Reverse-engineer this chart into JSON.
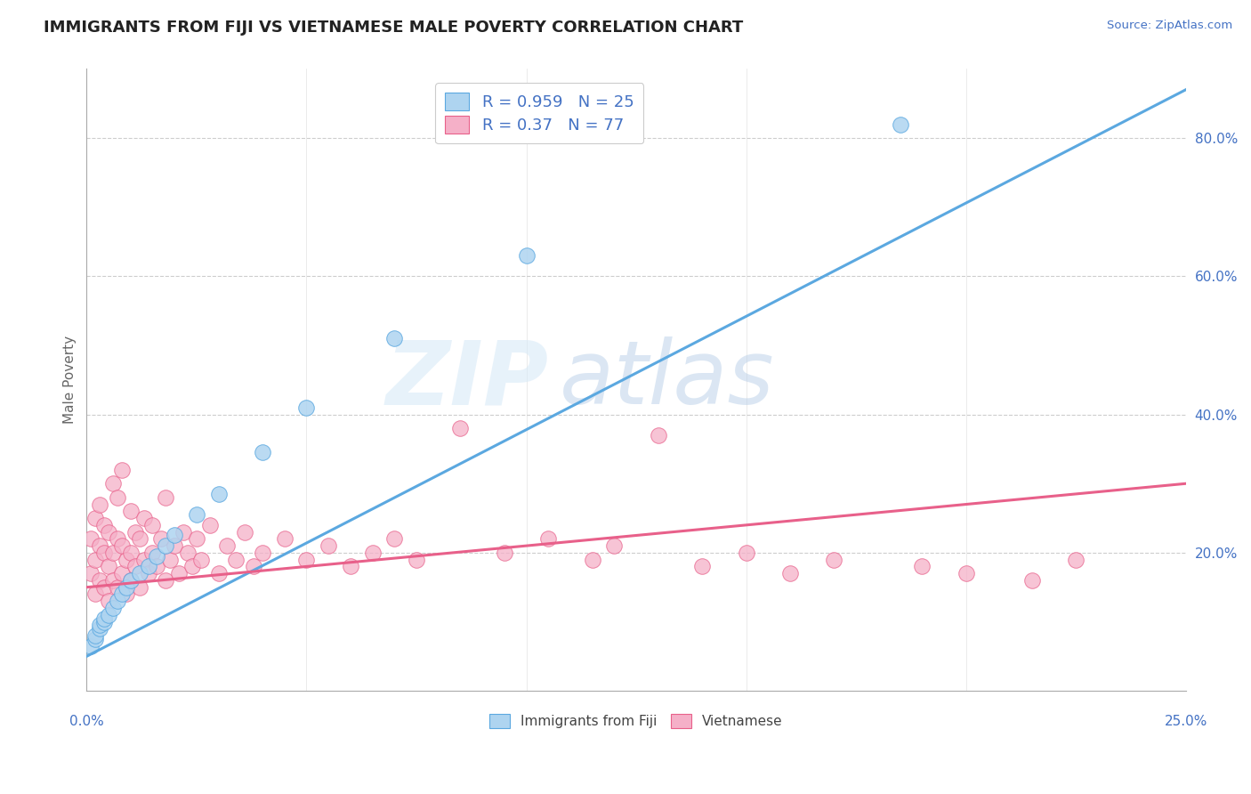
{
  "title": "IMMIGRANTS FROM FIJI VS VIETNAMESE MALE POVERTY CORRELATION CHART",
  "source_text": "Source: ZipAtlas.com",
  "ylabel": "Male Poverty",
  "right_yticks": [
    0.2,
    0.4,
    0.6,
    0.8
  ],
  "right_yticklabels": [
    "20.0%",
    "40.0%",
    "60.0%",
    "80.0%"
  ],
  "xlim": [
    0.0,
    0.25
  ],
  "ylim": [
    0.0,
    0.9
  ],
  "fiji_R": 0.959,
  "fiji_N": 25,
  "viet_R": 0.37,
  "viet_N": 77,
  "fiji_color": "#aed4f0",
  "fiji_line_color": "#5ba8e0",
  "viet_color": "#f5b0c8",
  "viet_line_color": "#e8608a",
  "legend_text_color": "#4472c4",
  "fiji_line_x0": 0.0,
  "fiji_line_y0": 0.05,
  "fiji_line_x1": 0.25,
  "fiji_line_y1": 0.87,
  "viet_line_x0": 0.0,
  "viet_line_y0": 0.15,
  "viet_line_x1": 0.25,
  "viet_line_y1": 0.3,
  "fiji_scatter_x": [
    0.001,
    0.002,
    0.002,
    0.003,
    0.003,
    0.004,
    0.004,
    0.005,
    0.006,
    0.007,
    0.008,
    0.009,
    0.01,
    0.012,
    0.014,
    0.016,
    0.018,
    0.02,
    0.025,
    0.03,
    0.04,
    0.05,
    0.07,
    0.1,
    0.185
  ],
  "fiji_scatter_y": [
    0.065,
    0.075,
    0.08,
    0.09,
    0.095,
    0.1,
    0.105,
    0.11,
    0.12,
    0.13,
    0.14,
    0.15,
    0.16,
    0.17,
    0.18,
    0.195,
    0.21,
    0.225,
    0.255,
    0.285,
    0.345,
    0.41,
    0.51,
    0.63,
    0.82
  ],
  "viet_scatter_x": [
    0.001,
    0.001,
    0.002,
    0.002,
    0.002,
    0.003,
    0.003,
    0.003,
    0.004,
    0.004,
    0.004,
    0.005,
    0.005,
    0.005,
    0.006,
    0.006,
    0.006,
    0.007,
    0.007,
    0.007,
    0.008,
    0.008,
    0.008,
    0.009,
    0.009,
    0.01,
    0.01,
    0.01,
    0.011,
    0.011,
    0.012,
    0.012,
    0.013,
    0.013,
    0.014,
    0.015,
    0.015,
    0.016,
    0.017,
    0.018,
    0.018,
    0.019,
    0.02,
    0.021,
    0.022,
    0.023,
    0.024,
    0.025,
    0.026,
    0.028,
    0.03,
    0.032,
    0.034,
    0.036,
    0.038,
    0.04,
    0.045,
    0.05,
    0.055,
    0.06,
    0.065,
    0.07,
    0.075,
    0.085,
    0.095,
    0.105,
    0.115,
    0.12,
    0.13,
    0.14,
    0.15,
    0.16,
    0.17,
    0.19,
    0.2,
    0.215,
    0.225
  ],
  "viet_scatter_y": [
    0.17,
    0.22,
    0.14,
    0.19,
    0.25,
    0.16,
    0.21,
    0.27,
    0.15,
    0.2,
    0.24,
    0.13,
    0.18,
    0.23,
    0.16,
    0.2,
    0.3,
    0.15,
    0.22,
    0.28,
    0.17,
    0.21,
    0.32,
    0.14,
    0.19,
    0.16,
    0.2,
    0.26,
    0.18,
    0.23,
    0.15,
    0.22,
    0.19,
    0.25,
    0.17,
    0.2,
    0.24,
    0.18,
    0.22,
    0.16,
    0.28,
    0.19,
    0.21,
    0.17,
    0.23,
    0.2,
    0.18,
    0.22,
    0.19,
    0.24,
    0.17,
    0.21,
    0.19,
    0.23,
    0.18,
    0.2,
    0.22,
    0.19,
    0.21,
    0.18,
    0.2,
    0.22,
    0.19,
    0.38,
    0.2,
    0.22,
    0.19,
    0.21,
    0.37,
    0.18,
    0.2,
    0.17,
    0.19,
    0.18,
    0.17,
    0.16,
    0.19
  ],
  "watermark_zip": "ZIP",
  "watermark_atlas": "atlas",
  "background_color": "#ffffff",
  "grid_color": "#c8c8c8"
}
